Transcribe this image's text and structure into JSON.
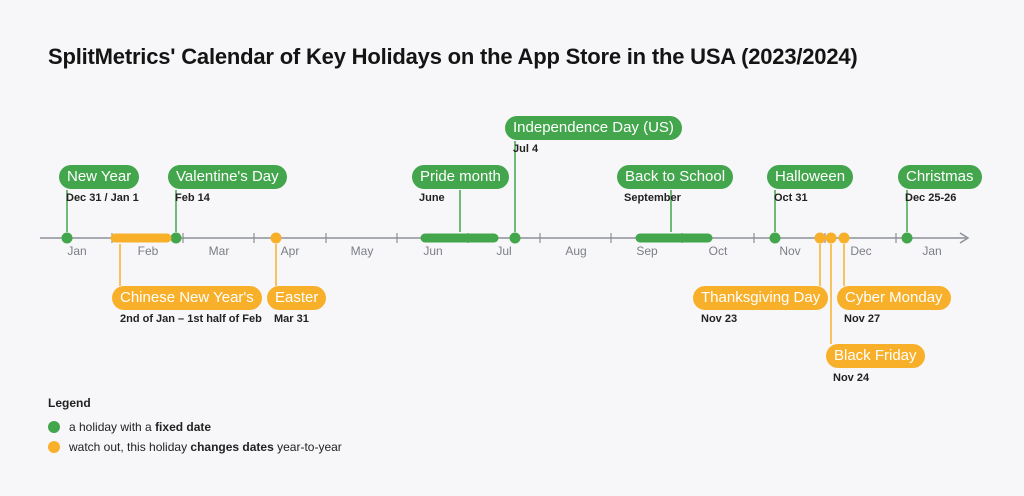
{
  "title": "SplitMetrics' Calendar of Key Holidays on the App Store in the USA (2023/2024)",
  "colors": {
    "fixed": "#43a64d",
    "changing": "#f8b02a",
    "axis": "#8e9099"
  },
  "months": [
    "Jan",
    "Feb",
    "Mar",
    "Apr",
    "May",
    "Jun",
    "Jul",
    "Aug",
    "Sep",
    "Oct",
    "Nov",
    "Dec",
    "Jan"
  ],
  "holidays": [
    {
      "name": "New Year",
      "date": "Dec 31 / Jan 1",
      "type": "fixed"
    },
    {
      "name": "Valentine's Day",
      "date": "Feb 14",
      "type": "fixed"
    },
    {
      "name": "Pride month",
      "date": "June",
      "type": "fixed"
    },
    {
      "name": "Independence Day (US)",
      "date": "Jul 4",
      "type": "fixed"
    },
    {
      "name": "Back to School",
      "date": "September",
      "type": "fixed"
    },
    {
      "name": "Halloween",
      "date": "Oct 31",
      "type": "fixed"
    },
    {
      "name": "Christmas",
      "date": "Dec 25-26",
      "type": "fixed"
    },
    {
      "name": "Chinese New Year's",
      "date": "2nd of Jan – 1st half of Feb",
      "type": "changing"
    },
    {
      "name": "Easter",
      "date": "Mar 31",
      "type": "changing"
    },
    {
      "name": "Thanksgiving Day",
      "date": "Nov 23",
      "type": "changing"
    },
    {
      "name": "Black Friday",
      "date": "Nov 24",
      "type": "changing"
    },
    {
      "name": "Cyber Monday",
      "date": "Nov 27",
      "type": "changing"
    }
  ],
  "legend": {
    "title": "Legend",
    "fixed": {
      "pre": "a holiday with a ",
      "bold": "fixed date",
      "post": ""
    },
    "changing": {
      "pre": "watch out, this holiday ",
      "bold": "changes dates",
      "post": " year-to-year"
    }
  }
}
